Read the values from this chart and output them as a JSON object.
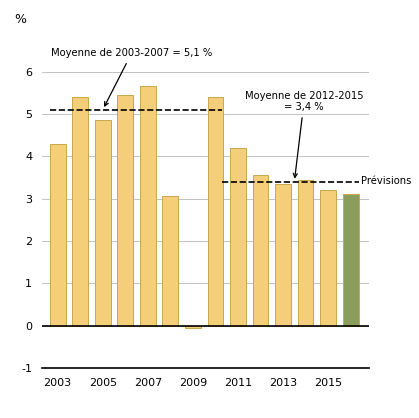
{
  "years": [
    2003,
    2004,
    2005,
    2006,
    2007,
    2008,
    2009,
    2010,
    2011,
    2012,
    2013,
    2014,
    2015,
    2016
  ],
  "values": [
    4.3,
    5.4,
    4.85,
    5.45,
    5.65,
    3.05,
    -0.07,
    5.4,
    4.2,
    3.55,
    3.35,
    3.45,
    3.2,
    3.1
  ],
  "bar_colors": [
    "#F5CE7A",
    "#F5CE7A",
    "#F5CE7A",
    "#F5CE7A",
    "#F5CE7A",
    "#F5CE7A",
    "#F5CE7A",
    "#F5CE7A",
    "#F5CE7A",
    "#F5CE7A",
    "#F5CE7A",
    "#F5CE7A",
    "#F5CE7A",
    "#8B9D5C"
  ],
  "bar_edgecolor": "#C8A84B",
  "mean1_value": 5.1,
  "mean1_label": "Moyenne de 2003-2007 = 5,1 %",
  "mean2_value": 3.4,
  "mean2_label": "Moyenne de 2012-2015\n= 3,4 %",
  "previsions_label": "Prévisions",
  "ylabel": "%",
  "ylim": [
    -1,
    7
  ],
  "yticks": [
    -1,
    0,
    1,
    2,
    3,
    4,
    5,
    6
  ],
  "xlim": [
    2002.3,
    2016.8
  ],
  "background_color": "#FFFFFF",
  "grid_color": "#AAAAAA"
}
